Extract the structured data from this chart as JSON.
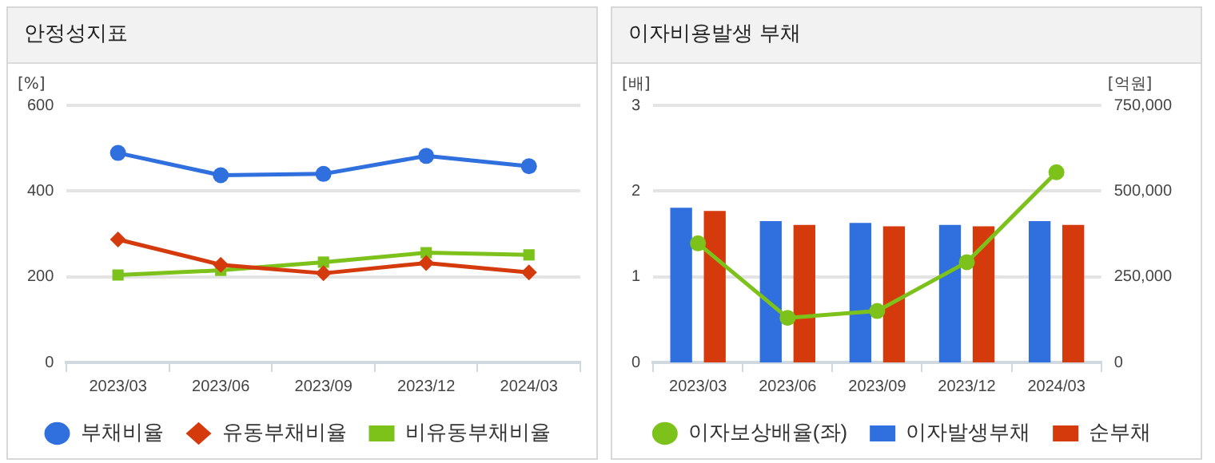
{
  "chart_data": [
    {
      "type": "line",
      "title": "안정성지표",
      "ylabel": "[%]",
      "categories": [
        "2023/03",
        "2023/06",
        "2023/09",
        "2023/12",
        "2024/03"
      ],
      "series": [
        {
          "name": "부채비율",
          "color": "#2f6fde",
          "marker": "circle",
          "values": [
            489,
            437,
            440,
            482,
            458
          ]
        },
        {
          "name": "유동부채비율",
          "color": "#d53a0c",
          "marker": "diamond",
          "values": [
            287,
            228,
            208,
            232,
            210
          ]
        },
        {
          "name": "비유동부채비율",
          "color": "#7cc21b",
          "marker": "square",
          "values": [
            204,
            215,
            234,
            256,
            251
          ]
        }
      ],
      "ylim": [
        0,
        600
      ],
      "yticks": [
        0,
        200,
        400,
        600
      ],
      "grid": "y",
      "legend": "bottom"
    },
    {
      "type": "bar",
      "title": "이자비용발생 부채",
      "ylabel": "[배]",
      "y2label": "[억원]",
      "categories": [
        "2023/03",
        "2023/06",
        "2023/09",
        "2023/12",
        "2024/03"
      ],
      "series": [
        {
          "name": "이자발생부채",
          "color": "#2f6fde",
          "axis": "y2",
          "values": [
            451000,
            412000,
            407000,
            401000,
            412000
          ]
        },
        {
          "name": "순부채",
          "color": "#d53a0c",
          "axis": "y2",
          "values": [
            442000,
            401000,
            397000,
            397000,
            401000
          ]
        },
        {
          "name": "이자보상배율(좌)",
          "type": "line",
          "marker": "circle",
          "color": "#7cc21b",
          "values": [
            1.39,
            0.52,
            0.6,
            1.17,
            2.22
          ]
        }
      ],
      "ylim": [
        0,
        3
      ],
      "yticks": [
        0,
        1,
        2,
        3
      ],
      "y2lim": [
        0,
        750000
      ],
      "y2ticks": [
        0,
        {
          "value": 250000,
          "label": "250,000"
        },
        {
          "value": 500000,
          "label": "500,000"
        },
        {
          "value": 750000,
          "label": "750,000"
        }
      ],
      "grid": "y",
      "legend": "bottom"
    }
  ]
}
